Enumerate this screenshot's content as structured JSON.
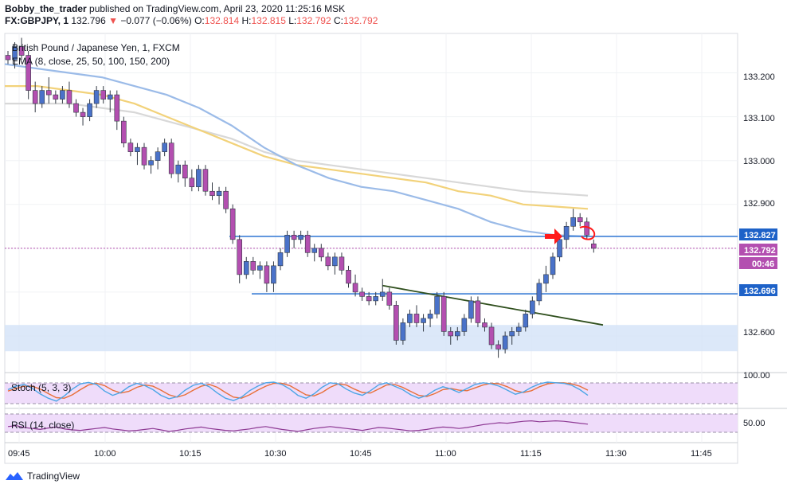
{
  "header": {
    "publisher": "Bobby_the_trader",
    "published_text": " published on TradingView.com, April 23, 2020 11:25:16 MSK",
    "symbol": "FX:GBPJPY, 1",
    "last": "132.796",
    "change_arrow": "▼",
    "change": "−0.077 (−0.06%)",
    "o_label": "O:",
    "o_value": "132.814",
    "h_label": "H:",
    "h_value": "132.815",
    "l_label": "L:",
    "l_value": "132.792",
    "c_label": "C:",
    "c_value": "132.792"
  },
  "legend": {
    "instrument": "British Pound / Japanese Yen, 1, FXCM",
    "ema": "EMA (8, close, 25, 50, 100, 150, 200)"
  },
  "stoch_label": "Stoch (5, 3, 3)",
  "rsi_label": "RSI (14, close)",
  "price_axis": {
    "ticks": [
      "133.200",
      "133.100",
      "133.000",
      "132.900",
      "132.600"
    ],
    "stoch_tick": "100.00",
    "rsi_tick": "50.00"
  },
  "price_labels": [
    {
      "text": "132.827",
      "color": "#1e62c8"
    },
    {
      "text": "132.792",
      "color": "#b34fb0"
    },
    {
      "text": "00:46",
      "color": "#b34fb0"
    },
    {
      "text": "132.696",
      "color": "#1e62c8"
    }
  ],
  "time_axis": [
    "09:45",
    "10:00",
    "10:15",
    "10:30",
    "10:45",
    "11:00",
    "11:15",
    "11:30",
    "11:45"
  ],
  "brand": "TradingView",
  "colors": {
    "bull": "#4a72c9",
    "bear": "#b34fb0",
    "level": "#3d7fd6",
    "zone": "#d6e4f8",
    "ema_fast": "#9bbbe8",
    "ema_mid": "#f2d27a",
    "ema_slow": "#d8d8d8",
    "trendline": "#2f4f1d",
    "stoch_k": "#4da6e6",
    "stoch_d": "#e8703a",
    "osc_bg": "#efdcfa",
    "rsi_line": "#8e3a94",
    "marker": "#ff1a1a"
  },
  "chart_data": {
    "type": "candlestick",
    "timeframe": "1 minute",
    "ylim": [
      132.52,
      133.29
    ],
    "levels": [
      132.827,
      132.696
    ],
    "zone": [
      132.565,
      132.625
    ],
    "indicators": [
      "EMA (8, close, 25, 50, 100, 150, 200)",
      "Stoch (5, 3, 3)",
      "RSI (14, close)"
    ],
    "candles": [
      [
        133.24,
        133.25,
        133.22,
        133.23
      ],
      [
        133.23,
        133.27,
        133.21,
        133.26
      ],
      [
        133.26,
        133.28,
        133.23,
        133.24
      ],
      [
        133.24,
        133.25,
        133.14,
        133.16
      ],
      [
        133.16,
        133.18,
        133.11,
        133.13
      ],
      [
        133.13,
        133.17,
        133.12,
        133.16
      ],
      [
        133.16,
        133.19,
        133.13,
        133.15
      ],
      [
        133.15,
        133.16,
        133.13,
        133.14
      ],
      [
        133.14,
        133.17,
        133.13,
        133.16
      ],
      [
        133.16,
        133.18,
        133.12,
        133.13
      ],
      [
        133.13,
        133.14,
        133.1,
        133.11
      ],
      [
        133.11,
        133.12,
        133.08,
        133.1
      ],
      [
        133.1,
        133.14,
        133.09,
        133.13
      ],
      [
        133.13,
        133.17,
        133.12,
        133.16
      ],
      [
        133.16,
        133.17,
        133.13,
        133.14
      ],
      [
        133.14,
        133.16,
        133.11,
        133.15
      ],
      [
        133.15,
        133.16,
        133.07,
        133.09
      ],
      [
        133.09,
        133.1,
        133.03,
        133.04
      ],
      [
        133.04,
        133.05,
        133.01,
        133.02
      ],
      [
        133.02,
        133.04,
        132.99,
        133.03
      ],
      [
        133.03,
        133.04,
        132.98,
        132.99
      ],
      [
        132.99,
        133.01,
        132.97,
        133.0
      ],
      [
        133.0,
        133.03,
        132.98,
        133.02
      ],
      [
        133.02,
        133.05,
        133.01,
        133.04
      ],
      [
        133.04,
        133.05,
        132.96,
        132.97
      ],
      [
        132.97,
        133.0,
        132.95,
        132.99
      ],
      [
        132.99,
        133.0,
        132.94,
        132.96
      ],
      [
        132.96,
        132.98,
        132.93,
        132.94
      ],
      [
        132.94,
        132.99,
        132.93,
        132.98
      ],
      [
        132.98,
        132.99,
        132.92,
        132.93
      ],
      [
        132.93,
        132.95,
        132.91,
        132.92
      ],
      [
        132.92,
        132.94,
        132.9,
        132.93
      ],
      [
        132.93,
        132.94,
        132.88,
        132.89
      ],
      [
        132.89,
        132.9,
        132.81,
        132.82
      ],
      [
        132.82,
        132.83,
        132.72,
        132.74
      ],
      [
        132.74,
        132.78,
        132.73,
        132.77
      ],
      [
        132.77,
        132.78,
        132.74,
        132.75
      ],
      [
        132.75,
        132.77,
        132.73,
        132.76
      ],
      [
        132.76,
        132.77,
        132.7,
        132.72
      ],
      [
        132.72,
        132.77,
        132.7,
        132.76
      ],
      [
        132.76,
        132.8,
        132.75,
        132.79
      ],
      [
        132.79,
        132.84,
        132.78,
        132.83
      ],
      [
        132.83,
        132.84,
        132.8,
        132.82
      ],
      [
        132.82,
        132.84,
        132.81,
        132.83
      ],
      [
        132.83,
        132.84,
        132.78,
        132.79
      ],
      [
        132.79,
        132.81,
        132.77,
        132.8
      ],
      [
        132.8,
        132.81,
        132.77,
        132.78
      ],
      [
        132.78,
        132.79,
        132.75,
        132.76
      ],
      [
        132.76,
        132.79,
        132.74,
        132.78
      ],
      [
        132.78,
        132.79,
        132.74,
        132.75
      ],
      [
        132.75,
        132.76,
        132.71,
        132.72
      ],
      [
        132.72,
        132.74,
        132.69,
        132.7
      ],
      [
        132.7,
        132.71,
        132.68,
        132.69
      ],
      [
        132.69,
        132.7,
        132.67,
        132.68
      ],
      [
        132.68,
        132.7,
        132.67,
        132.69
      ],
      [
        132.69,
        132.73,
        132.68,
        132.7
      ],
      [
        132.7,
        132.71,
        132.66,
        132.67
      ],
      [
        132.67,
        132.68,
        132.58,
        132.59
      ],
      [
        132.59,
        132.64,
        132.58,
        132.63
      ],
      [
        132.63,
        132.66,
        132.62,
        132.65
      ],
      [
        132.65,
        132.67,
        132.62,
        132.63
      ],
      [
        132.63,
        132.65,
        132.61,
        132.64
      ],
      [
        132.64,
        132.66,
        132.62,
        132.65
      ],
      [
        132.65,
        132.7,
        132.64,
        132.69
      ],
      [
        132.69,
        132.7,
        132.6,
        132.61
      ],
      [
        132.61,
        132.62,
        132.58,
        132.6
      ],
      [
        132.6,
        132.62,
        132.59,
        132.61
      ],
      [
        132.61,
        132.65,
        132.6,
        132.64
      ],
      [
        132.64,
        132.69,
        132.63,
        132.68
      ],
      [
        132.68,
        132.69,
        132.62,
        132.63
      ],
      [
        132.63,
        132.64,
        132.61,
        132.62
      ],
      [
        132.62,
        132.63,
        132.57,
        132.58
      ],
      [
        132.58,
        132.59,
        132.55,
        132.57
      ],
      [
        132.57,
        132.61,
        132.56,
        132.6
      ],
      [
        132.6,
        132.62,
        132.58,
        132.61
      ],
      [
        132.61,
        132.63,
        132.6,
        132.62
      ],
      [
        132.62,
        132.66,
        132.61,
        132.65
      ],
      [
        132.65,
        132.69,
        132.64,
        132.68
      ],
      [
        132.68,
        132.73,
        132.67,
        132.72
      ],
      [
        132.72,
        132.76,
        132.7,
        132.74
      ],
      [
        132.74,
        132.79,
        132.73,
        132.78
      ],
      [
        132.78,
        132.83,
        132.77,
        132.82
      ],
      [
        132.82,
        132.86,
        132.8,
        132.85
      ],
      [
        132.85,
        132.89,
        132.84,
        132.87
      ],
      [
        132.87,
        132.88,
        132.85,
        132.86
      ],
      [
        132.86,
        132.87,
        132.82,
        132.83
      ],
      [
        132.81,
        132.82,
        132.79,
        132.8
      ]
    ],
    "ema_series": {
      "fast": [
        133.22,
        133.21,
        133.2,
        133.19,
        133.17,
        133.15,
        133.12,
        133.08,
        133.03,
        132.99,
        132.96,
        132.94,
        132.93,
        132.91,
        132.89,
        132.86,
        132.84,
        132.83,
        132.827
      ],
      "mid": [
        133.17,
        133.17,
        133.16,
        133.15,
        133.13,
        133.1,
        133.07,
        133.04,
        133.01,
        132.99,
        132.98,
        132.97,
        132.96,
        132.95,
        132.93,
        132.92,
        132.9,
        132.895,
        132.89
      ],
      "slow": [
        133.13,
        133.13,
        133.13,
        133.12,
        133.11,
        133.09,
        133.07,
        133.05,
        133.02,
        133.0,
        132.99,
        132.98,
        132.97,
        132.96,
        132.95,
        132.94,
        132.93,
        132.925,
        132.92
      ]
    },
    "stoch_k": [
      60,
      72,
      78,
      65,
      45,
      30,
      20,
      38,
      62,
      80,
      85,
      78,
      55,
      40,
      50,
      70,
      82,
      74,
      60,
      40,
      28,
      35,
      58,
      75,
      82,
      70,
      48,
      30,
      22,
      34,
      56,
      72,
      84,
      86,
      78,
      62,
      40,
      30,
      45,
      68,
      84,
      80,
      62,
      48,
      40,
      56,
      76,
      84,
      72,
      60,
      42,
      30,
      40,
      58,
      70,
      62,
      50,
      64,
      78,
      84,
      80,
      72,
      58,
      44,
      52,
      68,
      80,
      86,
      84,
      82,
      75,
      60,
      40
    ],
    "stoch_d": [
      55,
      64,
      72,
      72,
      62,
      46,
      32,
      30,
      42,
      60,
      76,
      82,
      74,
      58,
      48,
      54,
      68,
      76,
      72,
      58,
      42,
      34,
      42,
      58,
      72,
      78,
      68,
      50,
      34,
      30,
      42,
      58,
      72,
      82,
      82,
      74,
      58,
      42,
      38,
      50,
      68,
      80,
      76,
      62,
      50,
      48,
      62,
      76,
      78,
      68,
      54,
      40,
      36,
      46,
      60,
      64,
      58,
      56,
      66,
      76,
      82,
      80,
      70,
      56,
      50,
      56,
      70,
      80,
      84,
      84,
      80,
      72,
      58
    ],
    "rsi": [
      52,
      54,
      50,
      48,
      46,
      49,
      51,
      47,
      45,
      44,
      46,
      48,
      50,
      47,
      45,
      43,
      44,
      46,
      48,
      45,
      42,
      44,
      47,
      49,
      51,
      48,
      46,
      44,
      43,
      45,
      47,
      50,
      52,
      49,
      46,
      44,
      42,
      45,
      48,
      50,
      52,
      50,
      48,
      46,
      44,
      47,
      50,
      49,
      47,
      45,
      43,
      44,
      46,
      49,
      51,
      50,
      48,
      50,
      53,
      56,
      58,
      60,
      59,
      61,
      63,
      64,
      62,
      63,
      64,
      63,
      61,
      59,
      57
    ]
  }
}
